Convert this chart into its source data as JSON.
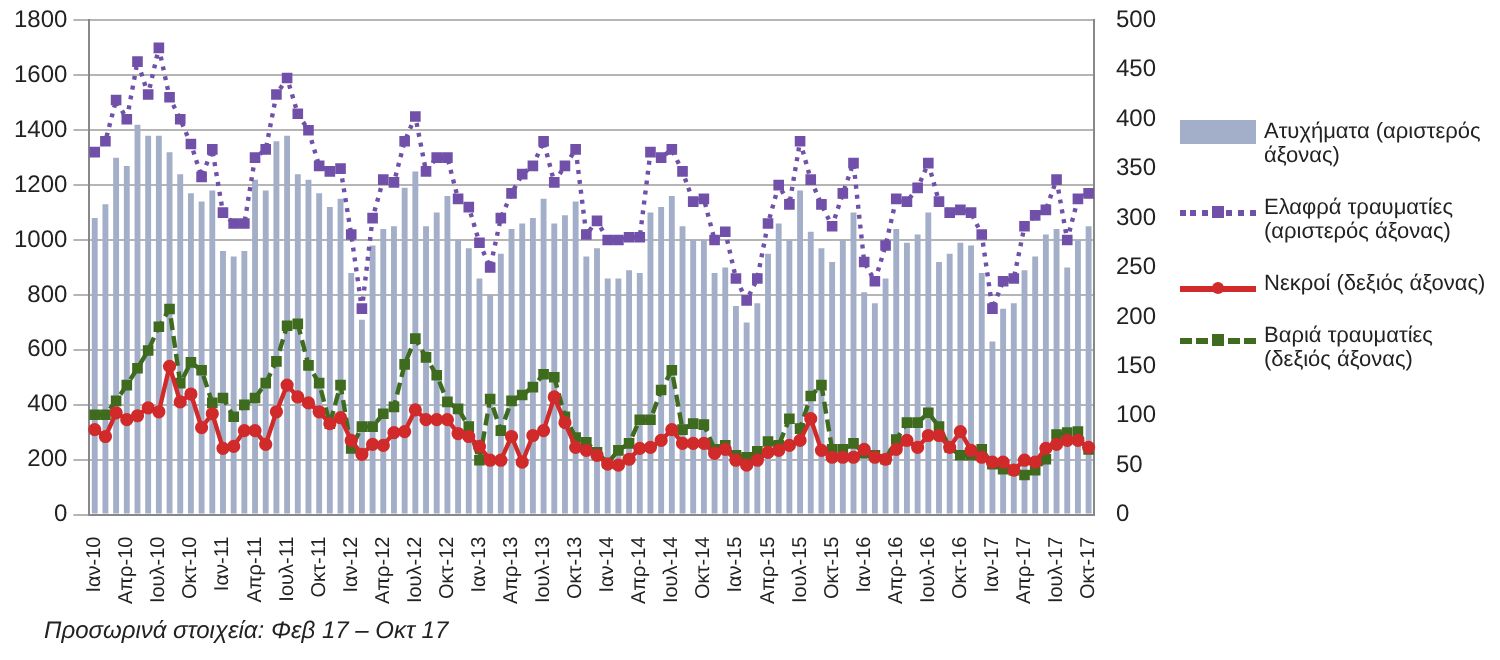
{
  "chart_data": {
    "type": "bar",
    "categories": [
      "Ιαν-10",
      null,
      null,
      "Απρ-10",
      null,
      null,
      "Ιουλ-10",
      null,
      null,
      "Οκτ-10",
      null,
      null,
      "Ιαν-11",
      null,
      null,
      "Απρ-11",
      null,
      null,
      "Ιουλ-11",
      null,
      null,
      "Οκτ-11",
      null,
      null,
      "Ιαν-12",
      null,
      null,
      "Απρ-12",
      null,
      null,
      "Ιουλ-12",
      null,
      null,
      "Οκτ-12",
      null,
      null,
      "Ιαν-13",
      null,
      null,
      "Απρ-13",
      null,
      null,
      "Ιουλ-13",
      null,
      null,
      "Οκτ-13",
      null,
      null,
      "Ιαν-14",
      null,
      null,
      "Απρ-14",
      null,
      null,
      "Ιουλ-14",
      null,
      null,
      "Οκτ-14",
      null,
      null,
      "Ιαν-15",
      null,
      null,
      "Απρ-15",
      null,
      null,
      "Ιουλ-15",
      null,
      null,
      "Οκτ-15",
      null,
      null,
      "Ιαν-16",
      null,
      null,
      "Απρ-16",
      null,
      null,
      "Ιουλ-16",
      null,
      null,
      "Οκτ-16",
      null,
      null,
      "Ιαν-17",
      null,
      null,
      "Απρ-17",
      null,
      null,
      "Ιουλ-17",
      null,
      null,
      "Οκτ-17"
    ],
    "series": [
      {
        "name": "Ατυχήματα (αριστερός άξονας)",
        "axis": "y",
        "color": "#a3aec8",
        "values": [
          1080,
          1130,
          1300,
          1270,
          1420,
          1380,
          1380,
          1320,
          1240,
          1170,
          1140,
          1180,
          960,
          940,
          960,
          1220,
          1180,
          1360,
          1380,
          1240,
          1220,
          1170,
          1120,
          1150,
          880,
          710,
          980,
          1040,
          1050,
          1190,
          1250,
          1050,
          1100,
          1160,
          1000,
          970,
          860,
          800,
          950,
          1040,
          1060,
          1080,
          1150,
          1060,
          1090,
          1140,
          940,
          970,
          860,
          860,
          890,
          880,
          1100,
          1120,
          1160,
          1050,
          1000,
          1000,
          880,
          900,
          760,
          700,
          770,
          950,
          1060,
          1000,
          1180,
          1030,
          970,
          920,
          1000,
          1100,
          810,
          770,
          860,
          1040,
          990,
          1020,
          1100,
          920,
          950,
          990,
          980,
          880,
          630,
          750,
          770,
          890,
          940,
          1020,
          1040,
          900,
          1000,
          1050
        ]
      },
      {
        "name": "Ελαφρά τραυματίες (αριστερός άξονας)",
        "type": "line",
        "axis": "y",
        "color": "#7050a8",
        "marker": "square",
        "line_style": "dotted",
        "values": [
          1320,
          1360,
          1510,
          1440,
          1650,
          1530,
          1700,
          1520,
          1440,
          1350,
          1230,
          1330,
          1100,
          1060,
          1060,
          1300,
          1330,
          1530,
          1590,
          1460,
          1400,
          1270,
          1250,
          1260,
          1020,
          750,
          1080,
          1220,
          1210,
          1360,
          1450,
          1250,
          1300,
          1300,
          1150,
          1120,
          990,
          900,
          1080,
          1170,
          1240,
          1270,
          1360,
          1210,
          1270,
          1330,
          1020,
          1070,
          1000,
          1000,
          1010,
          1010,
          1320,
          1300,
          1330,
          1250,
          1140,
          1150,
          1000,
          1030,
          860,
          780,
          860,
          1060,
          1200,
          1130,
          1360,
          1220,
          1130,
          1050,
          1170,
          1280,
          920,
          850,
          980,
          1150,
          1140,
          1190,
          1280,
          1140,
          1100,
          1110,
          1100,
          1020,
          750,
          850,
          860,
          1050,
          1090,
          1110,
          1220,
          1000,
          1150,
          1170
        ]
      },
      {
        "name": "Νεκροί (δεξιός άξονας)",
        "type": "line",
        "axis": "y2",
        "color": "#d02a2a",
        "marker": "circle",
        "line_style": "solid",
        "values": [
          86,
          79,
          103,
          96,
          100,
          108,
          104,
          150,
          114,
          122,
          88,
          102,
          67,
          69,
          85,
          85,
          71,
          104,
          131,
          119,
          113,
          104,
          92,
          98,
          75,
          61,
          71,
          70,
          83,
          84,
          106,
          96,
          96,
          96,
          82,
          79,
          69,
          55,
          55,
          79,
          53,
          80,
          85,
          119,
          93,
          68,
          65,
          60,
          51,
          50,
          56,
          67,
          68,
          75,
          86,
          72,
          72,
          72,
          62,
          66,
          55,
          50,
          55,
          63,
          65,
          70,
          75,
          97,
          65,
          58,
          58,
          58,
          66,
          58,
          56,
          66,
          75,
          68,
          80,
          80,
          68,
          84,
          65,
          58,
          53,
          53,
          45,
          55,
          53,
          67,
          71,
          75,
          75,
          68
        ]
      },
      {
        "name": "Βαριά τραυματίες (δεξιός άξονας)",
        "type": "line",
        "axis": "y2",
        "color": "#3e6b1e",
        "marker": "square",
        "line_style": "dashed",
        "values": [
          101,
          101,
          115,
          131,
          148,
          166,
          190,
          208,
          133,
          154,
          146,
          113,
          118,
          99,
          111,
          118,
          133,
          155,
          191,
          193,
          151,
          133,
          92,
          131,
          67,
          89,
          89,
          102,
          109,
          152,
          178,
          159,
          141,
          114,
          107,
          89,
          55,
          117,
          85,
          115,
          121,
          129,
          142,
          139,
          99,
          78,
          73,
          63,
          52,
          65,
          72,
          96,
          96,
          126,
          146,
          86,
          92,
          91,
          66,
          70,
          60,
          58,
          64,
          74,
          70,
          97,
          87,
          120,
          131,
          66,
          66,
          72,
          62,
          60,
          56,
          76,
          93,
          93,
          103,
          89,
          68,
          60,
          60,
          66,
          51,
          46,
          45,
          40,
          45,
          56,
          81,
          83,
          84,
          66
        ]
      }
    ],
    "ylim": [
      0,
      1800
    ],
    "yticks": [
      0,
      200,
      400,
      600,
      800,
      1000,
      1200,
      1400,
      1600,
      1800
    ],
    "y2lim": [
      0,
      500
    ],
    "y2ticks": [
      0,
      50,
      100,
      150,
      200,
      250,
      300,
      350,
      400,
      450,
      500
    ],
    "grid": "y",
    "legend": "right",
    "annotations": [
      "Προσωρινά στοιχεία: Φεβ 17 – Οκτ 17"
    ]
  }
}
